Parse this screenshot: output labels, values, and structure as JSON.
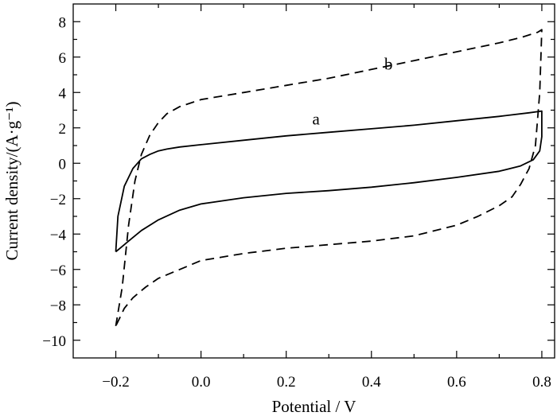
{
  "chart_data": {
    "type": "line",
    "title": "",
    "xlabel": "Potential / V",
    "ylabel": "Current density/(A·g⁻¹)",
    "xlim": [
      -0.3,
      0.83
    ],
    "ylim": [
      -11,
      9
    ],
    "x_ticks": [
      -0.2,
      0.0,
      0.2,
      0.4,
      0.6,
      0.8
    ],
    "x_tick_labels": [
      "−0.2",
      "0.0",
      "0.2",
      "0.4",
      "0.6",
      "0.8"
    ],
    "y_ticks": [
      -10,
      -8,
      -6,
      -4,
      -2,
      0,
      2,
      4,
      6,
      8
    ],
    "y_tick_labels": [
      "−10",
      "−8",
      "−6",
      "−4",
      "−2",
      "0",
      "2",
      "4",
      "6",
      "8"
    ],
    "grid": false,
    "series": [
      {
        "name": "a",
        "style": "solid",
        "color": "#000000",
        "label_at": [
          0.27,
          2.2
        ],
        "x": [
          -0.2,
          -0.195,
          -0.18,
          -0.16,
          -0.14,
          -0.12,
          -0.1,
          -0.08,
          -0.05,
          0.0,
          0.1,
          0.2,
          0.3,
          0.4,
          0.5,
          0.6,
          0.7,
          0.77,
          0.8,
          0.8,
          0.795,
          0.78,
          0.75,
          0.7,
          0.6,
          0.5,
          0.4,
          0.3,
          0.2,
          0.1,
          0.0,
          -0.05,
          -0.1,
          -0.14,
          -0.17,
          -0.19,
          -0.2
        ],
        "y": [
          -5.0,
          -3.0,
          -1.3,
          -0.3,
          0.25,
          0.5,
          0.7,
          0.8,
          0.92,
          1.05,
          1.3,
          1.55,
          1.75,
          1.95,
          2.15,
          2.4,
          2.65,
          2.85,
          2.95,
          1.5,
          0.7,
          0.2,
          -0.15,
          -0.45,
          -0.8,
          -1.1,
          -1.35,
          -1.55,
          -1.7,
          -1.95,
          -2.3,
          -2.65,
          -3.2,
          -3.8,
          -4.4,
          -4.8,
          -5.0
        ]
      },
      {
        "name": "b",
        "style": "dashed",
        "color": "#000000",
        "label_at": [
          0.44,
          5.3
        ],
        "x": [
          -0.2,
          -0.185,
          -0.17,
          -0.155,
          -0.14,
          -0.12,
          -0.1,
          -0.08,
          -0.05,
          0.0,
          0.05,
          0.1,
          0.2,
          0.3,
          0.4,
          0.5,
          0.6,
          0.7,
          0.75,
          0.79,
          0.8,
          0.795,
          0.785,
          0.77,
          0.75,
          0.73,
          0.7,
          0.65,
          0.6,
          0.5,
          0.4,
          0.3,
          0.2,
          0.1,
          0.0,
          -0.05,
          -0.1,
          -0.13,
          -0.16,
          -0.18,
          -0.19,
          -0.2
        ],
        "y": [
          -9.2,
          -7.0,
          -3.5,
          -1.0,
          0.5,
          1.6,
          2.3,
          2.8,
          3.2,
          3.6,
          3.8,
          4.0,
          4.4,
          4.8,
          5.3,
          5.8,
          6.3,
          6.8,
          7.1,
          7.4,
          7.55,
          4.0,
          1.0,
          -0.3,
          -1.2,
          -1.9,
          -2.4,
          -3.0,
          -3.5,
          -4.1,
          -4.4,
          -4.6,
          -4.8,
          -5.1,
          -5.5,
          -6.0,
          -6.5,
          -7.0,
          -7.6,
          -8.2,
          -8.7,
          -9.2
        ]
      }
    ]
  }
}
